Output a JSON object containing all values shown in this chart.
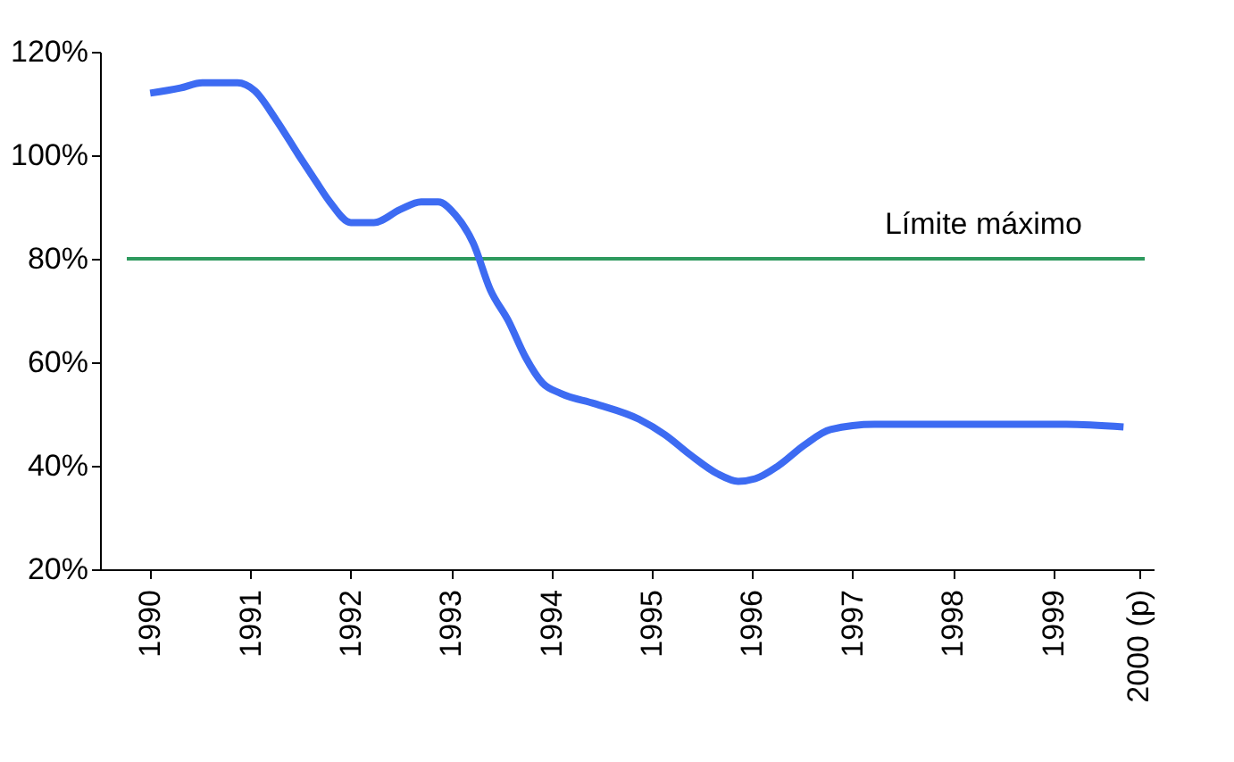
{
  "chart_data": {
    "type": "line",
    "x": [
      1990.0,
      1990.3,
      1990.52,
      1990.87,
      1991.04,
      1991.25,
      1991.48,
      1991.65,
      1991.79,
      1992.0,
      1992.23,
      1992.49,
      1992.7,
      1992.87,
      1993.04,
      1993.22,
      1993.39,
      1993.57,
      1993.74,
      1993.91,
      1994.09,
      1994.43,
      1994.87,
      1995.13,
      1995.39,
      1995.65,
      1995.86,
      1996.03,
      1996.26,
      1996.52,
      1996.78,
      1997.22,
      1997.74,
      1998.43,
      1999.13,
      1999.7
    ],
    "series": [
      {
        "color": "#3d6bf2",
        "values": [
          112,
          113,
          114,
          114,
          112.5,
          107,
          100,
          95,
          91,
          87,
          87,
          89.5,
          91,
          91,
          88.5,
          83,
          74,
          68,
          61,
          56,
          54,
          52,
          49,
          46,
          42,
          38.5,
          37,
          37.5,
          40,
          44,
          47,
          48,
          48,
          48,
          48,
          47.5
        ]
      }
    ],
    "xlim": [
      1989.5,
      2000.0
    ],
    "xticks": [
      1990,
      1991,
      1992,
      1993,
      1994,
      1995,
      1996,
      1997,
      1998,
      1999,
      {
        "value": 1999.85,
        "label": "2000 (p)"
      }
    ],
    "ylim": [
      20,
      120
    ],
    "yticks": [
      {
        "value": 20,
        "label": "20%"
      },
      {
        "value": 40,
        "label": "40%"
      },
      {
        "value": 60,
        "label": "60%"
      },
      {
        "value": 80,
        "label": "80%"
      },
      {
        "value": 100,
        "label": "100%"
      },
      {
        "value": 120,
        "label": "120%"
      }
    ],
    "ref_lines": [
      {
        "axis": "y",
        "value": 80,
        "label": "Límite máximo",
        "color": "#2e9a5e"
      }
    ],
    "grid": false,
    "marker": "none",
    "line_style": "solid"
  }
}
